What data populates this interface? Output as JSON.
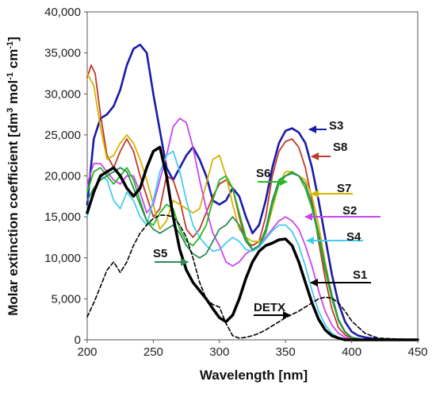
{
  "chart_data": {
    "type": "line",
    "xlabel": "Wavelength [nm]",
    "ylabel": "Molar extinction coefficient  [dm",
    "ylabel_sup1": "3",
    "ylabel_mid": " mol",
    "ylabel_sup2": "-1",
    "ylabel_mid2": " cm",
    "ylabel_sup3": "-1",
    "ylabel_end": "]",
    "xlim": [
      200,
      450
    ],
    "ylim": [
      0,
      40000
    ],
    "xticks": [
      "200",
      "250",
      "300",
      "350",
      "400",
      "450"
    ],
    "yticks": [
      "0",
      "5,000",
      "10,000",
      "15,000",
      "20,000",
      "25,000",
      "30,000",
      "35,000",
      "40,000"
    ],
    "grid": false,
    "series": [
      {
        "name": "S3",
        "color": "#1a1aa8",
        "x": [
          200,
          205,
          210,
          215,
          220,
          225,
          230,
          235,
          240,
          245,
          250,
          255,
          260,
          265,
          270,
          275,
          280,
          285,
          290,
          295,
          300,
          305,
          310,
          315,
          320,
          325,
          330,
          335,
          340,
          345,
          350,
          355,
          360,
          365,
          370,
          375,
          380,
          385,
          390,
          395,
          400,
          405,
          410,
          420,
          430,
          450
        ],
        "y": [
          16500,
          24500,
          27000,
          27500,
          28500,
          30500,
          33500,
          35500,
          36000,
          35000,
          30000,
          25500,
          21000,
          19500,
          21000,
          22500,
          23500,
          22000,
          20000,
          17000,
          16500,
          17000,
          18500,
          17500,
          15000,
          13000,
          14000,
          17000,
          21000,
          24000,
          25500,
          25800,
          25300,
          24000,
          21000,
          17000,
          12500,
          8000,
          4500,
          2200,
          1000,
          500,
          300,
          100,
          0,
          0
        ]
      },
      {
        "name": "S8",
        "color": "#c0392b",
        "x": [
          200,
          203,
          206,
          210,
          215,
          220,
          225,
          230,
          235,
          240,
          245,
          250,
          255,
          260,
          265,
          270,
          275,
          280,
          285,
          290,
          295,
          300,
          305,
          310,
          315,
          320,
          325,
          330,
          335,
          340,
          345,
          350,
          355,
          360,
          365,
          370,
          375,
          380,
          385,
          390,
          395,
          400,
          410,
          450
        ],
        "y": [
          32000,
          33500,
          32500,
          27500,
          22500,
          21000,
          23000,
          24500,
          23000,
          20000,
          17500,
          15000,
          16000,
          20000,
          19500,
          17000,
          13500,
          12500,
          13500,
          15500,
          17500,
          19000,
          19500,
          18500,
          15000,
          12000,
          11500,
          12000,
          15000,
          20000,
          23000,
          24200,
          24500,
          23500,
          21000,
          17000,
          12000,
          7500,
          3800,
          1500,
          600,
          200,
          0,
          0
        ]
      },
      {
        "name": "S7",
        "color": "#d4b400",
        "x": [
          200,
          205,
          210,
          215,
          220,
          225,
          230,
          235,
          240,
          245,
          250,
          255,
          260,
          265,
          270,
          275,
          280,
          285,
          290,
          295,
          300,
          305,
          310,
          315,
          320,
          325,
          330,
          335,
          340,
          345,
          350,
          355,
          360,
          365,
          370,
          375,
          380,
          385,
          390,
          395,
          400,
          410,
          450
        ],
        "y": [
          32500,
          31000,
          26000,
          22000,
          22500,
          24000,
          25000,
          24000,
          22000,
          19500,
          16500,
          13500,
          14500,
          17000,
          16500,
          16000,
          15500,
          16000,
          19000,
          22000,
          22500,
          20000,
          16500,
          13500,
          12500,
          12000,
          12000,
          13000,
          16000,
          19000,
          20500,
          20500,
          20000,
          19500,
          17500,
          14000,
          9500,
          5500,
          2500,
          1000,
          300,
          0,
          0
        ]
      },
      {
        "name": "S2",
        "color": "#cc44ee",
        "x": [
          200,
          205,
          210,
          215,
          220,
          225,
          230,
          235,
          240,
          245,
          250,
          255,
          260,
          265,
          270,
          275,
          280,
          285,
          290,
          295,
          300,
          305,
          310,
          315,
          320,
          325,
          330,
          335,
          340,
          345,
          350,
          355,
          360,
          365,
          370,
          375,
          380,
          385,
          390,
          395,
          400,
          410,
          450
        ],
        "y": [
          19000,
          21500,
          21500,
          20500,
          19500,
          19000,
          20000,
          20000,
          18000,
          15500,
          16500,
          19500,
          22500,
          26000,
          27000,
          26500,
          23500,
          19500,
          16000,
          13000,
          11500,
          9500,
          9000,
          9500,
          10500,
          11000,
          11500,
          12500,
          13500,
          14500,
          15000,
          14500,
          13500,
          11500,
          9000,
          6000,
          3500,
          1800,
          800,
          300,
          100,
          0,
          0
        ]
      },
      {
        "name": "S4",
        "color": "#44ccee",
        "x": [
          200,
          205,
          210,
          215,
          220,
          225,
          230,
          235,
          240,
          245,
          250,
          255,
          260,
          265,
          270,
          275,
          280,
          285,
          290,
          295,
          300,
          305,
          310,
          315,
          320,
          325,
          330,
          335,
          340,
          345,
          350,
          355,
          360,
          365,
          370,
          375,
          380,
          385,
          390,
          395,
          400,
          410,
          450
        ],
        "y": [
          15000,
          18000,
          20000,
          19500,
          17000,
          16000,
          18000,
          17000,
          15000,
          14000,
          17000,
          20500,
          22500,
          23000,
          20500,
          17000,
          14000,
          12500,
          11500,
          10800,
          11000,
          11800,
          12500,
          12000,
          11000,
          10800,
          11300,
          12300,
          13300,
          14000,
          14000,
          13200,
          11500,
          9000,
          6000,
          3500,
          1800,
          800,
          300,
          100,
          0,
          0,
          0
        ]
      },
      {
        "name": "S6",
        "color": "#22bb22",
        "x": [
          200,
          205,
          210,
          215,
          220,
          225,
          230,
          235,
          240,
          245,
          250,
          255,
          260,
          265,
          270,
          275,
          280,
          285,
          290,
          295,
          300,
          305,
          310,
          315,
          320,
          325,
          330,
          335,
          340,
          345,
          350,
          355,
          360,
          365,
          370,
          375,
          380,
          385,
          390,
          395,
          400,
          410,
          450
        ],
        "y": [
          18000,
          20500,
          21000,
          20000,
          19000,
          20000,
          21000,
          19500,
          17000,
          14500,
          14000,
          15500,
          16500,
          16000,
          13500,
          12000,
          11500,
          12500,
          14000,
          17000,
          19500,
          20000,
          18500,
          15500,
          12500,
          11000,
          11500,
          13000,
          16500,
          19000,
          20000,
          20500,
          20000,
          18500,
          16000,
          12500,
          8500,
          5000,
          2300,
          900,
          300,
          0,
          0
        ]
      },
      {
        "name": "S5",
        "color": "#2e8b57",
        "x": [
          200,
          205,
          210,
          215,
          220,
          225,
          230,
          235,
          240,
          245,
          250,
          255,
          260,
          265,
          270,
          275,
          280,
          285,
          290,
          295,
          300,
          305,
          310,
          315,
          320,
          325,
          330,
          335,
          340,
          345,
          350,
          355,
          360,
          365,
          370,
          375,
          380,
          385,
          390,
          395,
          400,
          410,
          450
        ],
        "y": [
          17000,
          18500,
          19500,
          20000,
          20500,
          21000,
          20500,
          18500,
          16500,
          14500,
          13500,
          13000,
          13500,
          14000,
          13000,
          11500,
          10500,
          10000,
          10500,
          12000,
          13500,
          14000,
          15000,
          14000,
          12000,
          11000,
          11500,
          13500,
          17000,
          19500,
          20000,
          20300,
          20000,
          19000,
          16500,
          13000,
          9000,
          5500,
          2500,
          1000,
          300,
          0,
          0
        ]
      },
      {
        "name": "S1",
        "color": "#000000",
        "x": [
          200,
          205,
          210,
          215,
          220,
          225,
          230,
          235,
          240,
          245,
          250,
          255,
          260,
          265,
          270,
          275,
          280,
          285,
          290,
          295,
          300,
          305,
          310,
          315,
          320,
          325,
          330,
          335,
          340,
          345,
          350,
          355,
          360,
          365,
          370,
          375,
          380,
          385,
          390,
          395,
          400,
          410,
          450
        ],
        "y": [
          15500,
          18000,
          20000,
          20500,
          21000,
          20000,
          18500,
          17500,
          18500,
          21000,
          23000,
          23500,
          20000,
          15000,
          11000,
          8500,
          7000,
          6000,
          5000,
          3800,
          2700,
          2200,
          3000,
          5000,
          7500,
          9500,
          10800,
          11500,
          11800,
          12200,
          12300,
          11500,
          9500,
          7000,
          4500,
          2500,
          1200,
          500,
          200,
          0,
          0,
          0,
          0
        ]
      },
      {
        "name": "DETX",
        "color": "#000000",
        "dashed": true,
        "x": [
          200,
          205,
          210,
          215,
          220,
          225,
          230,
          235,
          240,
          245,
          250,
          255,
          260,
          265,
          270,
          275,
          280,
          285,
          290,
          295,
          300,
          305,
          310,
          315,
          320,
          325,
          330,
          335,
          340,
          345,
          350,
          355,
          360,
          365,
          370,
          375,
          380,
          385,
          390,
          395,
          400,
          410,
          420,
          450
        ],
        "y": [
          2800,
          4500,
          6500,
          8500,
          9500,
          8200,
          9500,
          11500,
          13000,
          14000,
          14800,
          15200,
          15200,
          15000,
          14000,
          12500,
          10000,
          7000,
          5000,
          4300,
          4000,
          2000,
          500,
          200,
          300,
          500,
          800,
          1200,
          1700,
          2200,
          2700,
          3100,
          3500,
          4000,
          4500,
          5000,
          5200,
          5100,
          4500,
          3500,
          2300,
          800,
          200,
          0
        ]
      }
    ],
    "labels": [
      {
        "text": "S3",
        "series": "S3"
      },
      {
        "text": "S8",
        "series": "S8"
      },
      {
        "text": "S7",
        "series": "S7"
      },
      {
        "text": "S2",
        "series": "S2"
      },
      {
        "text": "S4",
        "series": "S4"
      },
      {
        "text": "S6",
        "series": "S6"
      },
      {
        "text": "S5",
        "series": "S5"
      },
      {
        "text": "S1",
        "series": "S1"
      },
      {
        "text": "DETX",
        "series": "DETX"
      }
    ]
  }
}
